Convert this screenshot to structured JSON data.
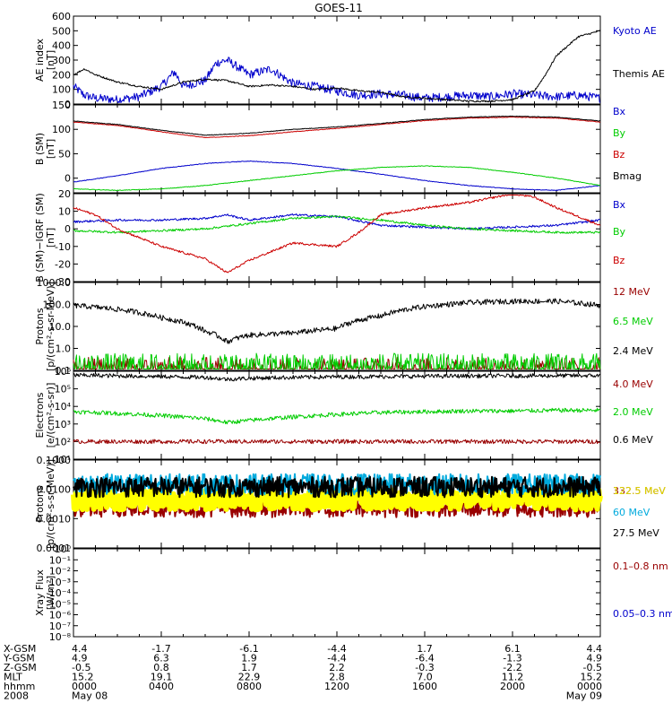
{
  "title": "GOES-11",
  "chart_data": [
    {
      "type": "line",
      "ylabel": "AE index\n[nT]",
      "ylim": [
        0,
        600
      ],
      "yticks": [
        "0",
        "100",
        "200",
        "300",
        "400",
        "500",
        "600"
      ],
      "yscale": "linear",
      "series": [
        {
          "name": "Kyoto AE",
          "color": "#0000cc",
          "x": [
            0,
            0.5,
            1,
            2,
            3,
            4,
            4.6,
            5,
            6,
            6.5,
            7,
            8,
            9,
            10,
            11,
            12,
            13,
            14,
            15,
            16,
            17,
            18,
            19,
            20,
            21,
            22,
            23,
            24
          ],
          "y": [
            120,
            60,
            40,
            30,
            50,
            120,
            220,
            120,
            160,
            280,
            300,
            200,
            240,
            140,
            120,
            90,
            60,
            70,
            60,
            40,
            50,
            60,
            50,
            70,
            60,
            50,
            60,
            40
          ]
        },
        {
          "name": "Themis AE",
          "color": "#000000",
          "x": [
            0,
            0.5,
            1,
            2,
            3,
            4,
            5,
            6,
            7,
            8,
            9,
            10,
            11,
            12,
            13,
            14,
            15,
            16,
            17,
            18,
            19,
            20,
            21,
            21.5,
            22,
            23,
            24
          ],
          "y": [
            200,
            240,
            200,
            150,
            120,
            100,
            150,
            170,
            160,
            120,
            130,
            120,
            100,
            110,
            90,
            80,
            50,
            40,
            30,
            20,
            20,
            30,
            90,
            200,
            330,
            460,
            500
          ]
        }
      ]
    },
    {
      "type": "line",
      "ylabel": "B (SM)\n[nT]",
      "ylim": [
        -30,
        150
      ],
      "yticks": [
        "0",
        "50",
        "100",
        "150"
      ],
      "yscale": "linear",
      "series": [
        {
          "name": "Bx",
          "color": "#0000cc",
          "x": [
            0,
            2,
            4,
            6,
            8,
            10,
            12,
            14,
            16,
            18,
            20,
            22,
            24
          ],
          "y": [
            -8,
            5,
            20,
            30,
            35,
            30,
            20,
            8,
            -5,
            -15,
            -22,
            -25,
            -15
          ]
        },
        {
          "name": "By",
          "color": "#00cc00",
          "x": [
            0,
            2,
            4,
            6,
            8,
            10,
            12,
            14,
            16,
            18,
            20,
            22,
            24
          ],
          "y": [
            -22,
            -25,
            -22,
            -15,
            -5,
            5,
            15,
            22,
            25,
            22,
            12,
            0,
            -15
          ]
        },
        {
          "name": "Bz",
          "color": "#cc0000",
          "x": [
            0,
            2,
            4,
            6,
            8,
            10,
            12,
            14,
            16,
            18,
            20,
            22,
            24
          ],
          "y": [
            115,
            108,
            95,
            83,
            87,
            95,
            102,
            110,
            118,
            123,
            125,
            123,
            115
          ]
        },
        {
          "name": "Bmag",
          "color": "#000000",
          "x": [
            0,
            2,
            4,
            6,
            8,
            10,
            12,
            14,
            16,
            18,
            20,
            22,
            24
          ],
          "y": [
            117,
            110,
            98,
            88,
            92,
            100,
            105,
            112,
            120,
            125,
            127,
            125,
            117
          ]
        }
      ]
    },
    {
      "type": "line",
      "ylabel": "B (SM)−IGRF (SM)\n[nT]",
      "ylim": [
        -30,
        20
      ],
      "yticks": [
        "-30",
        "-20",
        "-10",
        "0",
        "10",
        "20"
      ],
      "yscale": "linear",
      "series": [
        {
          "name": "Bx",
          "color": "#0000cc",
          "x": [
            0,
            2,
            4,
            6,
            7,
            8,
            10,
            12,
            14,
            16,
            18,
            20,
            22,
            24
          ],
          "y": [
            4,
            5,
            5,
            6,
            8,
            5,
            8,
            7,
            2,
            1,
            0,
            1,
            2,
            5
          ]
        },
        {
          "name": "By",
          "color": "#00cc00",
          "x": [
            0,
            2,
            4,
            6,
            8,
            10,
            12,
            14,
            16,
            18,
            20,
            22,
            24
          ],
          "y": [
            -1,
            -2,
            -1,
            0,
            3,
            6,
            7,
            5,
            2,
            0,
            -1,
            -2,
            -2
          ]
        },
        {
          "name": "Bz",
          "color": "#cc0000",
          "x": [
            0,
            1,
            2,
            4,
            6,
            7,
            8,
            10,
            12,
            13,
            14,
            16,
            18,
            20,
            21,
            22,
            24
          ],
          "y": [
            12,
            8,
            0,
            -10,
            -17,
            -25,
            -18,
            -8,
            -10,
            -2,
            8,
            12,
            15,
            20,
            18,
            12,
            2
          ]
        }
      ]
    },
    {
      "type": "line",
      "ylabel": "Protons\n[p/(cm²-s-sr-MeV)]",
      "ylim": [
        0.1,
        1000
      ],
      "yticks": [
        "0.1",
        "1.0",
        "10.0",
        "100.0",
        "1000.0"
      ],
      "yscale": "log",
      "series": [
        {
          "name": "12 MeV",
          "color": "#990000",
          "x": [
            0,
            24
          ],
          "y": [
            0.1,
            0.1
          ]
        },
        {
          "name": "6.5 MeV",
          "color": "#00cc00",
          "x": [
            0,
            24
          ],
          "y": [
            0.15,
            0.15
          ]
        },
        {
          "name": "2.4 MeV",
          "color": "#000000",
          "x": [
            0,
            2,
            4,
            6,
            7,
            8,
            10,
            12,
            14,
            16,
            18,
            20,
            22,
            24
          ],
          "y": [
            90,
            60,
            25,
            6,
            2,
            4,
            5,
            8,
            30,
            80,
            120,
            140,
            140,
            90
          ]
        }
      ]
    },
    {
      "type": "line",
      "ylabel": "Electrons\n[e/(cm²-s-sr)]",
      "ylim": [
        10,
        1000000
      ],
      "yticks": [
        "10¹",
        "10²",
        "10³",
        "10⁴",
        "10⁵",
        "10⁶"
      ],
      "yscale": "log",
      "series": [
        {
          "name": "4.0 MeV",
          "color": "#990000",
          "x": [
            0,
            24
          ],
          "y": [
            100,
            100
          ]
        },
        {
          "name": "2.0 MeV",
          "color": "#00cc00",
          "x": [
            0,
            2,
            4,
            6,
            7,
            8,
            10,
            12,
            14,
            16,
            18,
            20,
            22,
            24
          ],
          "y": [
            5000,
            4000,
            3000,
            2000,
            1200,
            1600,
            2500,
            3500,
            4500,
            5000,
            5500,
            5500,
            6000,
            6000
          ]
        },
        {
          "name": "0.6 MeV",
          "color": "#000000",
          "x": [
            0,
            2,
            4,
            6,
            7,
            8,
            10,
            12,
            14,
            16,
            18,
            20,
            22,
            24
          ],
          "y": [
            600000,
            550000,
            500000,
            450000,
            350000,
            400000,
            450000,
            480000,
            500000,
            520000,
            540000,
            550000,
            560000,
            560000
          ]
        }
      ]
    },
    {
      "type": "line",
      "ylabel": "Protons\n[p/(cm²-s-sr-MeV)]",
      "ylim": [
        0.0001,
        0.1
      ],
      "yticks": [
        "0.0001",
        "0.0010",
        "0.0100",
        "0.1000"
      ],
      "yscale": "log",
      "series": [
        {
          "name": "332.5 MeV",
          "color": "#990000",
          "x": [
            0,
            24
          ],
          "y": [
            0.0025,
            0.0025
          ]
        },
        {
          "name": "122.5 MeV",
          "color": "#ffff00",
          "x": [
            0,
            24
          ],
          "y": [
            0.0045,
            0.0045
          ]
        },
        {
          "name": "60 MeV",
          "color": "#00aadd",
          "x": [
            0,
            24
          ],
          "y": [
            0.015,
            0.015
          ]
        },
        {
          "name": "27.5 MeV",
          "color": "#000000",
          "x": [
            0,
            24
          ],
          "y": [
            0.012,
            0.012
          ]
        }
      ]
    },
    {
      "type": "line",
      "ylabel": "Xray Flux\n[W/m²]",
      "ylim": [
        1e-08,
        1
      ],
      "yticks": [
        "10⁻⁸",
        "10⁻⁷",
        "10⁻⁶",
        "10⁻⁵",
        "10⁻⁴",
        "10⁻³",
        "10⁻²",
        "10⁻¹",
        "10⁰"
      ],
      "yscale": "log",
      "series": [
        {
          "name": "0.1–0.8 nm",
          "color": "#990000",
          "x": [],
          "y": []
        },
        {
          "name": "0.05–0.3 nm",
          "color": "#0000cc",
          "x": [],
          "y": []
        }
      ]
    }
  ],
  "x_table": {
    "row_labels": [
      "X-GSM",
      "Y-GSM",
      "Z-GSM",
      "MLT",
      "hhmm",
      "2008"
    ],
    "columns": [
      [
        "4.4",
        "4.9",
        "-0.5",
        "15.2",
        "0000",
        "May 08"
      ],
      [
        "-1.7",
        "6.3",
        "0.8",
        "19.1",
        "0400",
        ""
      ],
      [
        "-6.1",
        "1.9",
        "1.7",
        "22.9",
        "0800",
        ""
      ],
      [
        "-4.4",
        "-4.4",
        "2.2",
        "2.8",
        "1200",
        ""
      ],
      [
        "1.7",
        "-6.4",
        "-0.3",
        "7.0",
        "1600",
        ""
      ],
      [
        "6.1",
        "-1.3",
        "-2.2",
        "11.2",
        "2000",
        ""
      ],
      [
        "4.4",
        "4.9",
        "-0.5",
        "15.2",
        "0000",
        "May 09"
      ]
    ]
  }
}
